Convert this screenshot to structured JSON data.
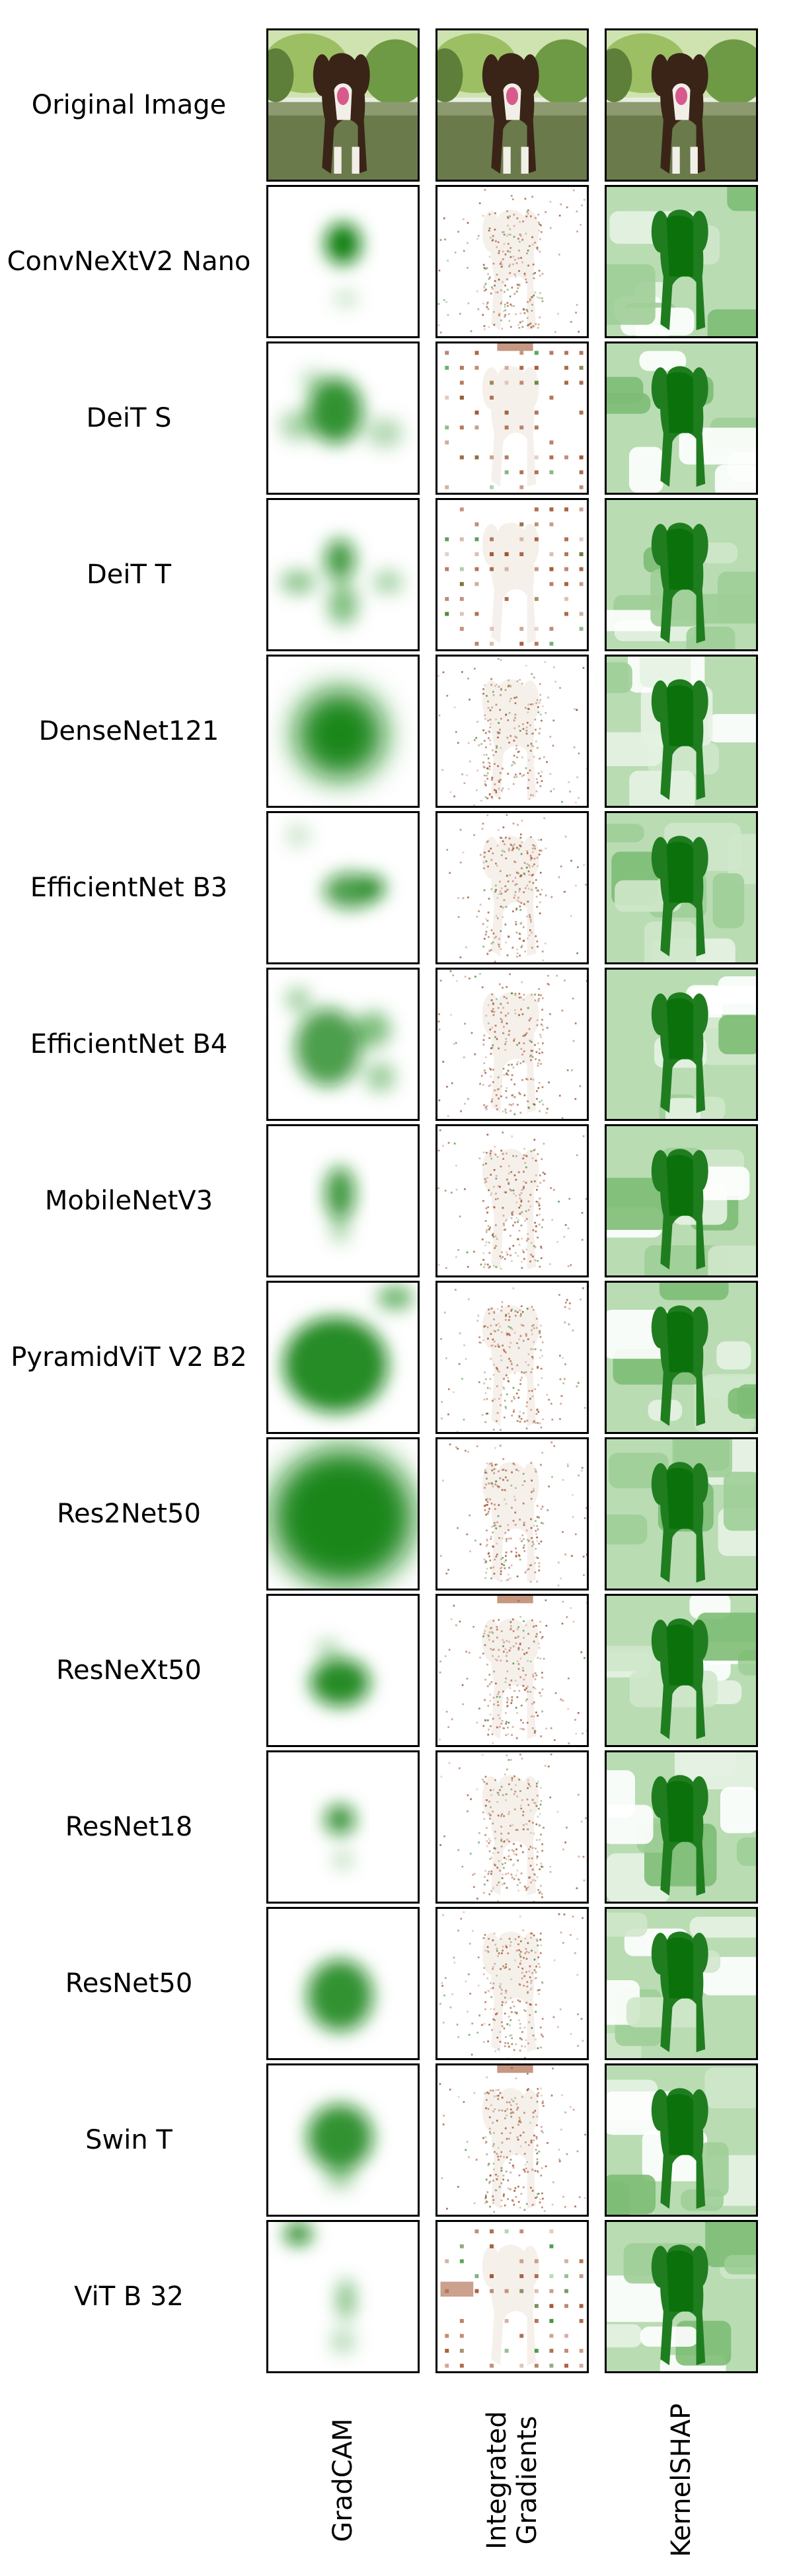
{
  "rows": [
    {
      "label": "Original Image"
    },
    {
      "label": "ConvNeXtV2 Nano"
    },
    {
      "label": "DeiT S"
    },
    {
      "label": "DeiT T"
    },
    {
      "label": "DenseNet121"
    },
    {
      "label": "EfficientNet B3"
    },
    {
      "label": "EfficientNet B4"
    },
    {
      "label": "MobileNetV3"
    },
    {
      "label": "PyramidViT V2 B2"
    },
    {
      "label": "Res2Net50"
    },
    {
      "label": "ResNeXt50"
    },
    {
      "label": "ResNet18"
    },
    {
      "label": "ResNet50"
    },
    {
      "label": "Swin T"
    },
    {
      "label": "ViT B 32"
    }
  ],
  "columns": [
    {
      "label": "GradCAM"
    },
    {
      "label": "Integrated\nGradients"
    },
    {
      "label": "KernelSHAP"
    }
  ],
  "colors": {
    "saliency_green": "#0a7f0a",
    "gradient_brown": "#a0522d",
    "frame": "#000000"
  }
}
